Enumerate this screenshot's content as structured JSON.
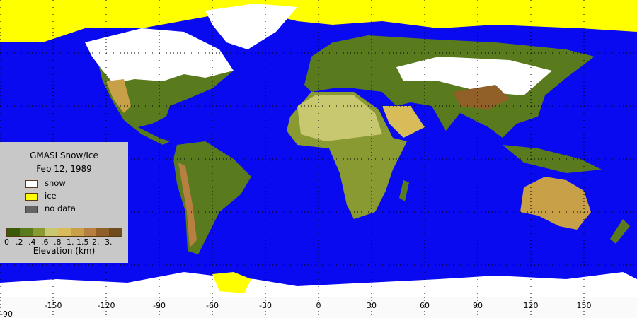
{
  "legend": {
    "title": "GMASI Snow/Ice",
    "date": "Feb 12, 1989",
    "items": [
      {
        "label": "snow",
        "color": "#ffffff"
      },
      {
        "label": "ice",
        "color": "#ffff00"
      },
      {
        "label": "no data",
        "color": "#646464"
      }
    ],
    "elevation_ticks": [
      "0",
      ".2",
      ".4",
      ".6",
      ".8",
      "1.",
      "1.5",
      "2.",
      "3."
    ],
    "elevation_colors": [
      "#3a5a0a",
      "#5a7a1e",
      "#8a9a32",
      "#c8c870",
      "#d8bc5a",
      "#c8a048",
      "#b88040",
      "#906028",
      "#6e4c20"
    ],
    "elevation_label": "Elevation (km)"
  },
  "axis": {
    "lon_labels": [
      "-150",
      "-120",
      "-90",
      "-60",
      "-30",
      "0",
      "30",
      "60",
      "90",
      "120",
      "150"
    ],
    "lat_label": "-90"
  },
  "colors": {
    "ocean": "#0a0af0",
    "snow": "#ffffff",
    "ice": "#ffff00"
  }
}
